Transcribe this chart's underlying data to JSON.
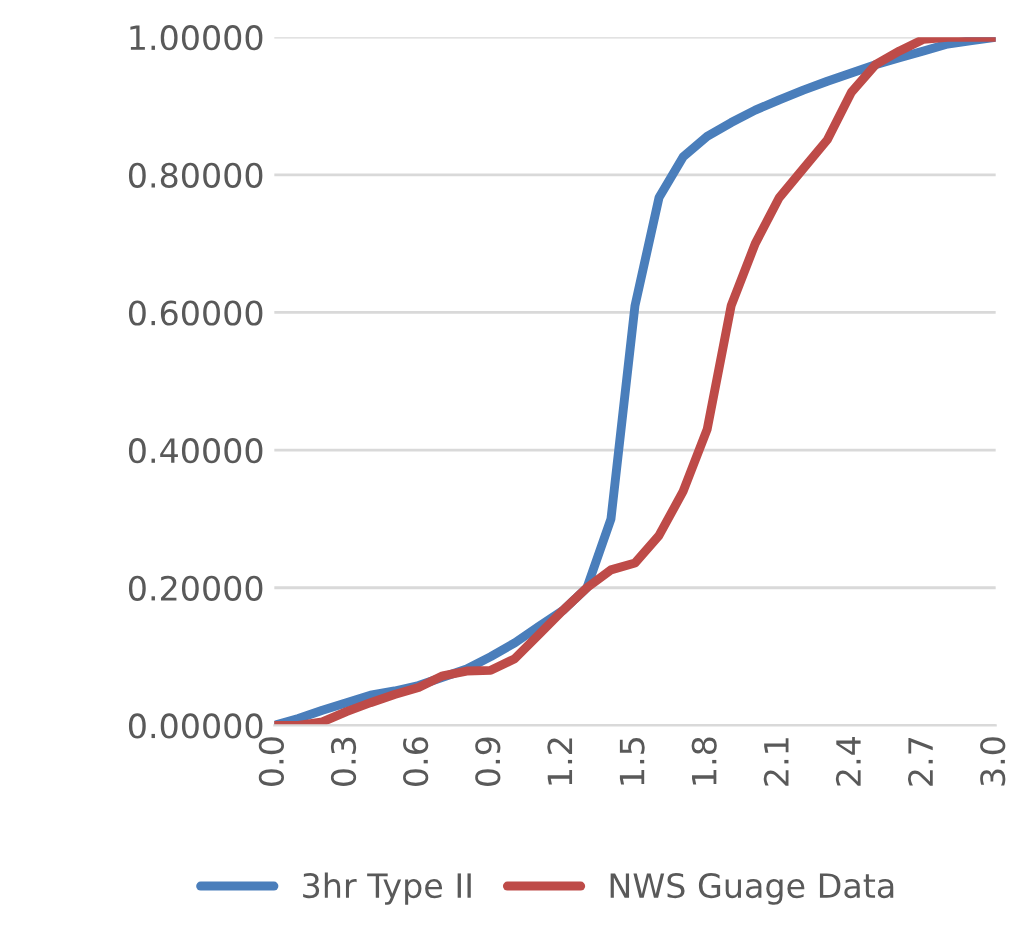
{
  "chart_data": {
    "type": "line",
    "x": [
      0.0,
      0.1,
      0.2,
      0.3,
      0.4,
      0.5,
      0.6,
      0.7,
      0.8,
      0.9,
      1.0,
      1.1,
      1.2,
      1.3,
      1.4,
      1.5,
      1.6,
      1.7,
      1.8,
      1.9,
      2.0,
      2.1,
      2.2,
      2.3,
      2.4,
      2.5,
      2.6,
      2.7,
      2.8,
      2.9,
      3.0
    ],
    "series": [
      {
        "name": "3hr Type II",
        "color": "#4a7ebb",
        "values": [
          0.0,
          0.01,
          0.022,
          0.033,
          0.044,
          0.05,
          0.058,
          0.07,
          0.082,
          0.1,
          0.12,
          0.144,
          0.167,
          0.2,
          0.3,
          0.61,
          0.767,
          0.826,
          0.856,
          0.876,
          0.894,
          0.909,
          0.923,
          0.936,
          0.948,
          0.96,
          0.97,
          0.98,
          0.99,
          0.995,
          1.0
        ]
      },
      {
        "name": "NWS Guage Data",
        "color": "#be4b48",
        "values": [
          0.0,
          0.0,
          0.005,
          0.02,
          0.033,
          0.045,
          0.055,
          0.072,
          0.079,
          0.08,
          0.097,
          0.132,
          0.167,
          0.2,
          0.226,
          0.236,
          0.276,
          0.34,
          0.43,
          0.61,
          0.7,
          0.767,
          0.809,
          0.851,
          0.92,
          0.96,
          0.98,
          0.997,
          1.0,
          1.0,
          1.0
        ]
      }
    ],
    "xlim": [
      0,
      3.0
    ],
    "xticks": [
      {
        "value": 0,
        "label": "0.0"
      },
      {
        "value": 0.3,
        "label": "0.3"
      },
      {
        "value": 0.6,
        "label": "0.6"
      },
      {
        "value": 0.9,
        "label": "0.9"
      },
      {
        "value": 1.2,
        "label": "1.2"
      },
      {
        "value": 1.5,
        "label": "1.5"
      },
      {
        "value": 1.8,
        "label": "1.8"
      },
      {
        "value": 2.1,
        "label": "2.1"
      },
      {
        "value": 2.4,
        "label": "2.4"
      },
      {
        "value": 2.7,
        "label": "2.7"
      },
      {
        "value": 3.0,
        "label": "3.0"
      }
    ],
    "ylim": [
      0,
      1.0
    ],
    "yticks": [
      {
        "value": 0,
        "label": "0.00000"
      },
      {
        "value": 0.2,
        "label": "0.20000"
      },
      {
        "value": 0.4,
        "label": "0.40000"
      },
      {
        "value": 0.6,
        "label": "0.60000"
      },
      {
        "value": 0.8,
        "label": "0.80000"
      },
      {
        "value": 1.0,
        "label": "1.00000"
      }
    ],
    "grid": "y",
    "legend": "bottom",
    "line_style": "solid",
    "marker": "none"
  }
}
